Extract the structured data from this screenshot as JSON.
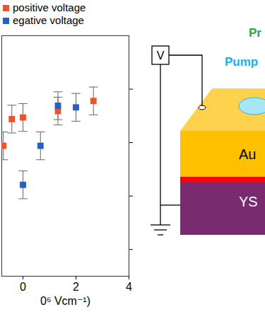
{
  "chart_data": {
    "type": "scatter",
    "xlabel": "0⁶ Vcm⁻¹)",
    "xlim": [
      -0.8,
      4
    ],
    "xticks": [
      0,
      2,
      4
    ],
    "ylim": [
      0.5,
      5
    ],
    "yticks": [
      1,
      2,
      3,
      4
    ],
    "tick_labels": "x",
    "legend": "top-left",
    "marker": "square",
    "series": [
      {
        "name": "positive voltage",
        "color": "#e8552f",
        "x": [
          -0.74,
          -0.42,
          0,
          1.32,
          2.66
        ],
        "values": [
          2.94,
          3.44,
          3.47,
          3.59,
          3.78
        ],
        "errors": [
          0.26,
          0.26,
          0.26,
          0.26,
          0.26
        ]
      },
      {
        "name": "egative voltage",
        "color": "#2360c8",
        "x": [
          0,
          0.66,
          1.32,
          2
        ],
        "values": [
          2.21,
          2.94,
          3.69,
          3.66
        ],
        "errors": [
          0.26,
          0.26,
          0.26,
          0.26
        ]
      }
    ]
  },
  "diagram": {
    "source": "V",
    "probe": "Pr",
    "pump": "Pump",
    "layers": [
      "Au",
      "YS"
    ]
  }
}
